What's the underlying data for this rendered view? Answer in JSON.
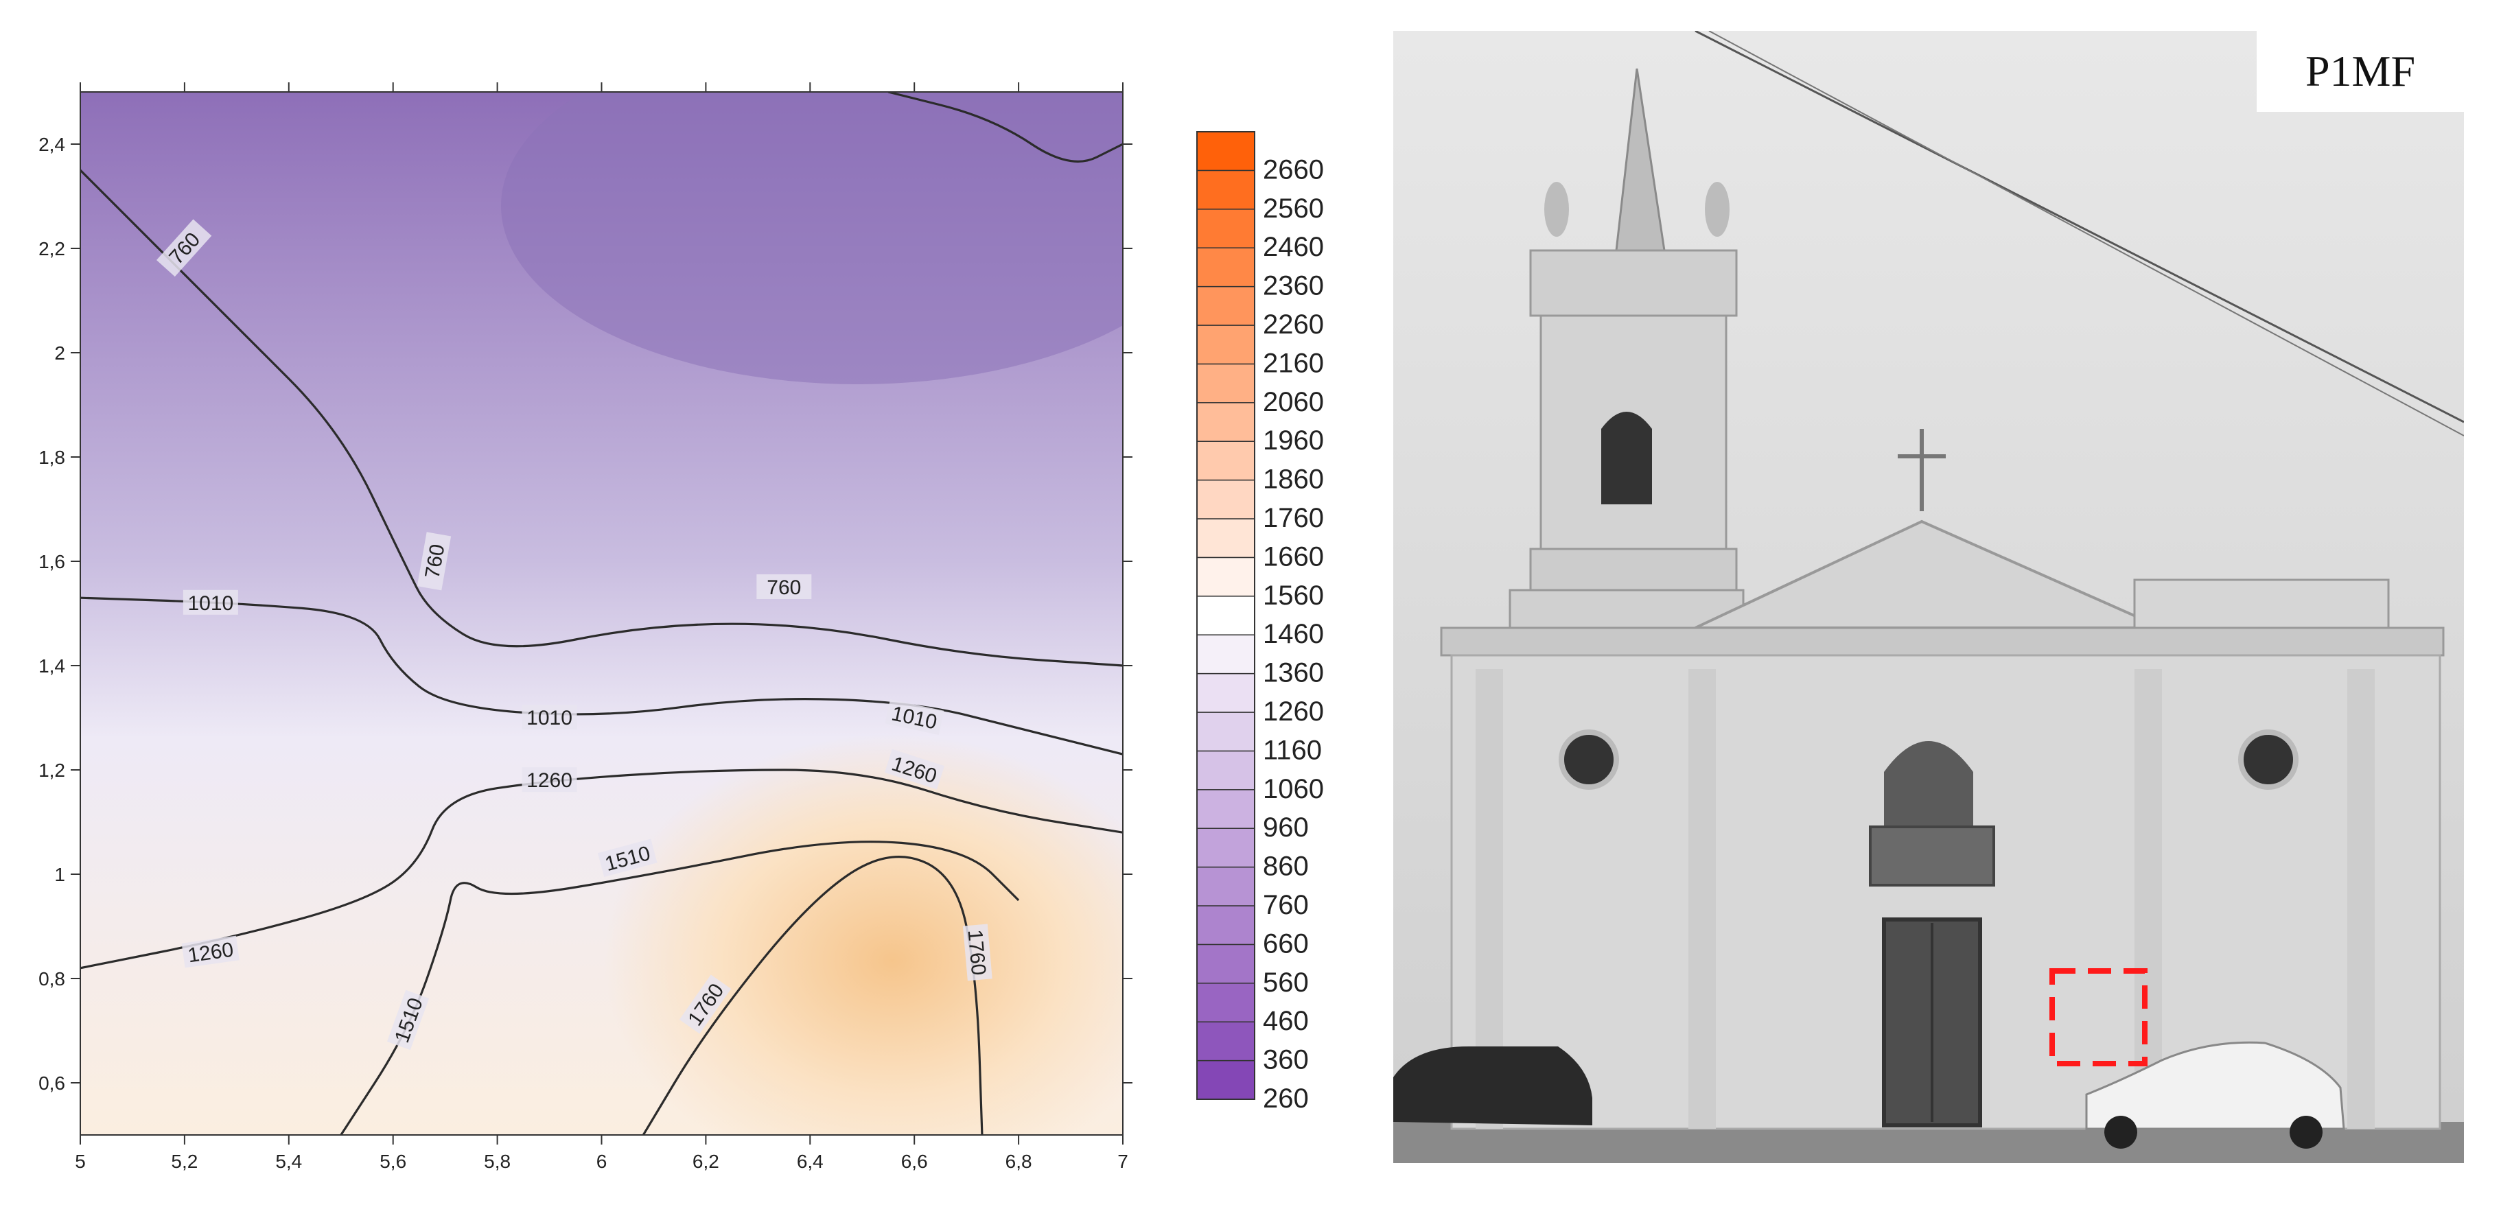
{
  "chart_data": {
    "type": "contour",
    "x_ticks": [
      "5",
      "5,2",
      "5,4",
      "5,6",
      "5,8",
      "6",
      "6,2",
      "6,4",
      "6,6",
      "6,8",
      "7"
    ],
    "y_ticks": [
      "0,6",
      "0,8",
      "1",
      "1,2",
      "1,4",
      "1,6",
      "1,8",
      "2",
      "2,2",
      "2,4"
    ],
    "xlim": [
      5,
      7
    ],
    "ylim": [
      0.5,
      2.5
    ],
    "colorbar": {
      "levels": [
        "260",
        "360",
        "460",
        "560",
        "660",
        "760",
        "860",
        "960",
        "1060",
        "1160",
        "1260",
        "1360",
        "1460",
        "1560",
        "1660",
        "1760",
        "1860",
        "1960",
        "2060",
        "2160",
        "2260",
        "2360",
        "2460",
        "2560",
        "2660"
      ],
      "range": [
        260,
        2760
      ],
      "low_color": "#7f3fb3",
      "mid_color": "#ffffff",
      "high_color": "#ff5a00"
    },
    "contour_labels": [
      "760",
      "760",
      "760",
      "1010",
      "1010",
      "1010",
      "1260",
      "1260",
      "1260",
      "1510",
      "1510",
      "1760",
      "1760"
    ],
    "contours": [
      {
        "level": 760,
        "points": [
          [
            5,
            2.35
          ],
          [
            5.3,
            2.05
          ],
          [
            5.5,
            1.85
          ],
          [
            5.62,
            1.6
          ],
          [
            5.67,
            1.5
          ],
          [
            5.8,
            1.42
          ],
          [
            6.1,
            1.48
          ],
          [
            6.4,
            1.48
          ],
          [
            6.7,
            1.42
          ],
          [
            7,
            1.4
          ]
        ]
      },
      {
        "level": 760,
        "points": [
          [
            6.55,
            2.5
          ],
          [
            6.75,
            2.45
          ],
          [
            6.9,
            2.35
          ],
          [
            7,
            2.4
          ]
        ]
      },
      {
        "level": 1010,
        "points": [
          [
            5,
            1.53
          ],
          [
            5.3,
            1.52
          ],
          [
            5.55,
            1.5
          ],
          [
            5.6,
            1.4
          ],
          [
            5.7,
            1.32
          ],
          [
            6,
            1.3
          ],
          [
            6.3,
            1.34
          ],
          [
            6.6,
            1.33
          ],
          [
            6.8,
            1.28
          ],
          [
            7,
            1.23
          ]
        ]
      },
      {
        "level": 1260,
        "points": [
          [
            5,
            0.82
          ],
          [
            5.3,
            0.88
          ],
          [
            5.55,
            0.95
          ],
          [
            5.65,
            1.02
          ],
          [
            5.7,
            1.15
          ],
          [
            5.9,
            1.18
          ],
          [
            6.2,
            1.2
          ],
          [
            6.5,
            1.2
          ],
          [
            6.75,
            1.12
          ],
          [
            7,
            1.08
          ]
        ]
      },
      {
        "level": 1510,
        "points": [
          [
            5.5,
            0.5
          ],
          [
            5.63,
            0.7
          ],
          [
            5.7,
            0.9
          ],
          [
            5.72,
            1.0
          ],
          [
            5.8,
            0.95
          ],
          [
            6.1,
            1.0
          ],
          [
            6.45,
            1.07
          ],
          [
            6.7,
            1.05
          ],
          [
            6.8,
            0.95
          ]
        ]
      },
      {
        "level": 1760,
        "points": [
          [
            6.08,
            0.5
          ],
          [
            6.2,
            0.7
          ],
          [
            6.4,
            0.95
          ],
          [
            6.55,
            1.05
          ],
          [
            6.68,
            1.0
          ],
          [
            6.72,
            0.8
          ],
          [
            6.73,
            0.5
          ]
        ]
      }
    ]
  },
  "photo": {
    "label": "P1MF",
    "description_icon": "church-photo"
  }
}
